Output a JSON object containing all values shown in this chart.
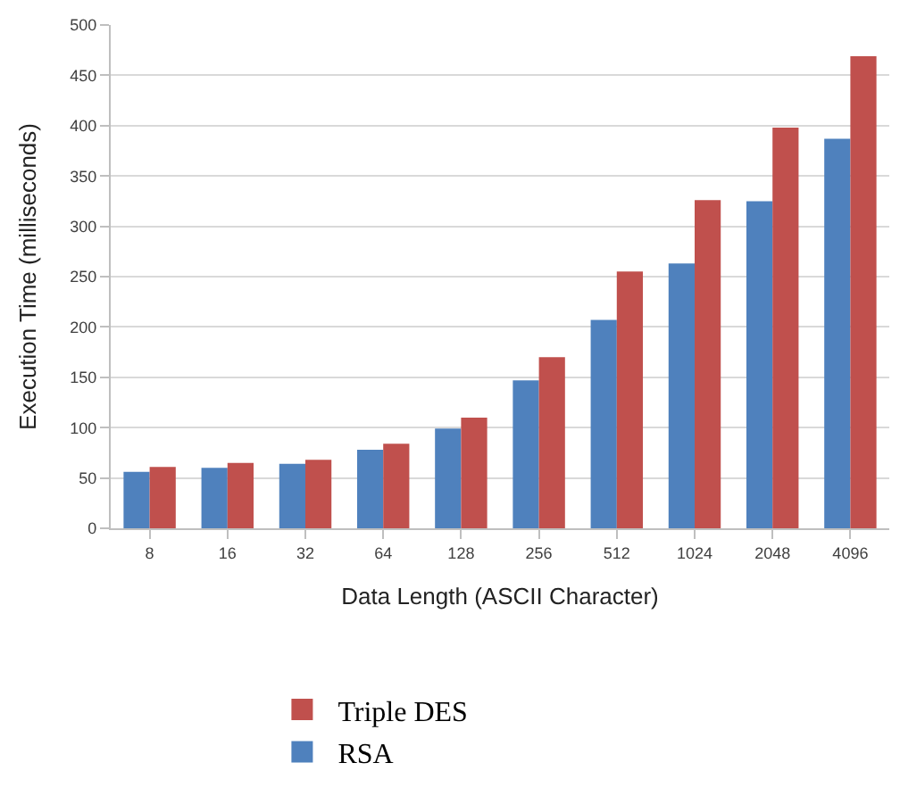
{
  "chart_data": {
    "type": "bar",
    "xlabel": "Data Length (ASCII Character)",
    "ylabel": "Execution Time (milliseconds)",
    "categories": [
      "8",
      "16",
      "32",
      "64",
      "128",
      "256",
      "512",
      "1024",
      "2048",
      "4096"
    ],
    "series": [
      {
        "name": "RSA",
        "color": "#4f81bd",
        "values": [
          56,
          60,
          64,
          78,
          99,
          147,
          207,
          263,
          325,
          387
        ]
      },
      {
        "name": "Triple DES",
        "color": "#c0504d",
        "values": [
          61,
          65,
          68,
          84,
          110,
          170,
          255,
          326,
          398,
          469
        ]
      }
    ],
    "ylim": [
      0,
      500
    ],
    "yticks": [
      0,
      50,
      100,
      150,
      200,
      250,
      300,
      350,
      400,
      450,
      500
    ],
    "grid": "y",
    "legend": "bottom"
  }
}
